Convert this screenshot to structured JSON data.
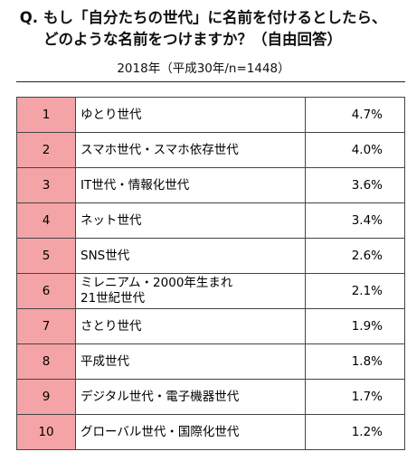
{
  "title": {
    "q": "Q.",
    "line1": "もし「自分たちの世代」に名前を付けるとしたら、",
    "line2": "どのような名前をつけますか？（自由回答）"
  },
  "subtitle": "2018年（平成30年/n=1448）",
  "colors": {
    "rank_fill": "#f4a4a6",
    "border": "#444444"
  },
  "chart_data": {
    "type": "table",
    "columns": [
      "",
      "",
      ""
    ],
    "rows": [
      {
        "rank": "1",
        "name": "ゆとり世代",
        "value": "4.7%"
      },
      {
        "rank": "2",
        "name": "スマホ世代・スマホ依存世代",
        "value": "4.0%"
      },
      {
        "rank": "3",
        "name": "IT世代・情報化世代",
        "value": "3.6%"
      },
      {
        "rank": "4",
        "name": "ネット世代",
        "value": "3.4%"
      },
      {
        "rank": "5",
        "name": "SNS世代",
        "value": "2.6%"
      },
      {
        "rank": "6",
        "name": "ミレニアム・2000年生まれ\n21世紀世代",
        "value": "2.1%"
      },
      {
        "rank": "7",
        "name": "さとり世代",
        "value": "1.9%"
      },
      {
        "rank": "8",
        "name": "平成世代",
        "value": "1.8%"
      },
      {
        "rank": "9",
        "name": "デジタル世代・電子機器世代",
        "value": "1.7%"
      },
      {
        "rank": "10",
        "name": "グローバル世代・国際化世代",
        "value": "1.2%"
      }
    ]
  }
}
